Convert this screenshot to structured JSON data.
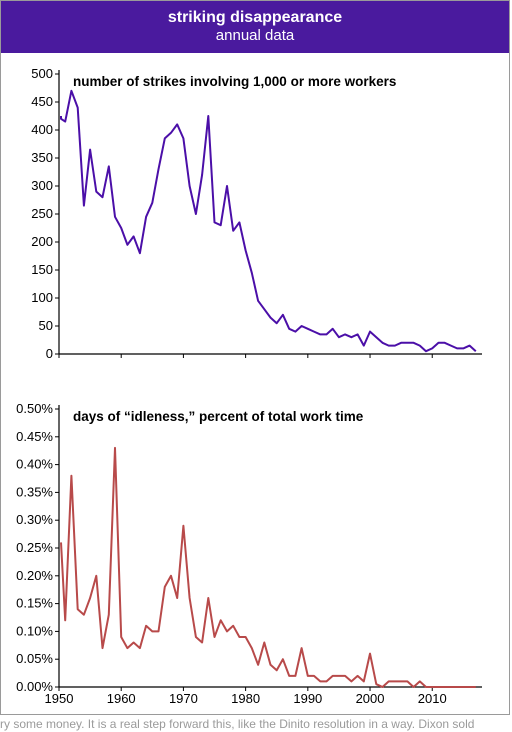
{
  "colors": {
    "header_bg": "#4a1a9e",
    "strikes_line": "#4b0fa8",
    "idleness_line": "#b84a4a"
  },
  "header": {
    "title": "striking disappearance",
    "subtitle": "annual data"
  },
  "caption_fragment": "ry some money. It is a real step forward this, like the Dinito resolution in a way. Dixon sold",
  "chart_data": [
    {
      "type": "line",
      "title": "number of strikes involving 1,000 or more workers",
      "xlabel": "",
      "ylabel": "",
      "xlim": [
        1950,
        2018
      ],
      "ylim": [
        0,
        500
      ],
      "x_ticks": [
        1950,
        1960,
        1970,
        1980,
        1990,
        2000,
        2010
      ],
      "y_ticks": [
        0,
        50,
        100,
        150,
        200,
        250,
        300,
        350,
        400,
        450,
        500
      ],
      "y_tick_labels": [
        "0",
        "50",
        "100",
        "150",
        "200",
        "250",
        "300",
        "350",
        "400",
        "450",
        "500"
      ],
      "grid": false,
      "series": [
        {
          "x": [
            1949,
            1950,
            1951,
            1952,
            1953,
            1954,
            1955,
            1956,
            1957,
            1958,
            1959,
            1960,
            1961,
            1962,
            1963,
            1964,
            1965,
            1966,
            1967,
            1968,
            1969,
            1970,
            1971,
            1972,
            1973,
            1974,
            1975,
            1976,
            1977,
            1978,
            1979,
            1980,
            1981,
            1982,
            1983,
            1984,
            1985,
            1986,
            1987,
            1988,
            1989,
            1990,
            1991,
            1992,
            1993,
            1994,
            1995,
            1996,
            1997,
            1998,
            1999,
            2000,
            2001,
            2002,
            2003,
            2004,
            2005,
            2006,
            2007,
            2008,
            2009,
            2010,
            2011,
            2012,
            2013,
            2014,
            2015,
            2016,
            2017
          ],
          "values": [
            425,
            420,
            415,
            470,
            440,
            265,
            365,
            290,
            280,
            335,
            245,
            225,
            195,
            210,
            180,
            245,
            270,
            330,
            385,
            395,
            410,
            385,
            300,
            250,
            320,
            425,
            235,
            230,
            300,
            220,
            235,
            185,
            145,
            95,
            80,
            65,
            55,
            70,
            45,
            40,
            50,
            45,
            40,
            35,
            35,
            45,
            30,
            35,
            30,
            35,
            15,
            40,
            30,
            20,
            15,
            15,
            20,
            20,
            20,
            15,
            5,
            10,
            20,
            20,
            15,
            10,
            10,
            15,
            5
          ]
        }
      ]
    },
    {
      "type": "line",
      "title": "days of “idleness,” percent of total work time",
      "xlabel": "",
      "ylabel": "",
      "xlim": [
        1950,
        2018
      ],
      "ylim": [
        0,
        0.5
      ],
      "x_ticks": [
        1950,
        1960,
        1970,
        1980,
        1990,
        2000,
        2010
      ],
      "y_ticks": [
        0,
        0.05,
        0.1,
        0.15,
        0.2,
        0.25,
        0.3,
        0.35,
        0.4,
        0.45,
        0.5
      ],
      "y_tick_labels": [
        "0.00%",
        "0.05%",
        "0.10%",
        "0.15%",
        "0.20%",
        "0.25%",
        "0.30%",
        "0.35%",
        "0.40%",
        "0.45%",
        "0.50%"
      ],
      "grid": false,
      "series": [
        {
          "x": [
            1949,
            1950,
            1951,
            1952,
            1953,
            1954,
            1955,
            1956,
            1957,
            1958,
            1959,
            1960,
            1961,
            1962,
            1963,
            1964,
            1965,
            1966,
            1967,
            1968,
            1969,
            1970,
            1971,
            1972,
            1973,
            1974,
            1975,
            1976,
            1977,
            1978,
            1979,
            1980,
            1981,
            1982,
            1983,
            1984,
            1985,
            1986,
            1987,
            1988,
            1989,
            1990,
            1991,
            1992,
            1993,
            1994,
            1995,
            1996,
            1997,
            1998,
            1999,
            2000,
            2001,
            2002,
            2003,
            2004,
            2005,
            2006,
            2007,
            2008,
            2009,
            2010,
            2011,
            2012,
            2013,
            2014,
            2015,
            2016,
            2017
          ],
          "values": [
            0.26,
            0.26,
            0.12,
            0.38,
            0.14,
            0.13,
            0.16,
            0.2,
            0.07,
            0.13,
            0.43,
            0.09,
            0.07,
            0.08,
            0.07,
            0.11,
            0.1,
            0.1,
            0.18,
            0.2,
            0.16,
            0.29,
            0.16,
            0.09,
            0.08,
            0.16,
            0.09,
            0.12,
            0.1,
            0.11,
            0.09,
            0.09,
            0.07,
            0.04,
            0.08,
            0.04,
            0.03,
            0.05,
            0.02,
            0.02,
            0.07,
            0.02,
            0.02,
            0.01,
            0.01,
            0.02,
            0.02,
            0.02,
            0.01,
            0.02,
            0.01,
            0.06,
            0.005,
            0.0,
            0.01,
            0.01,
            0.01,
            0.01,
            0.0,
            0.01,
            0.0,
            0.0,
            0.0,
            0.0,
            0.0,
            0.0,
            0.0,
            0.0,
            0.0
          ]
        }
      ]
    }
  ]
}
